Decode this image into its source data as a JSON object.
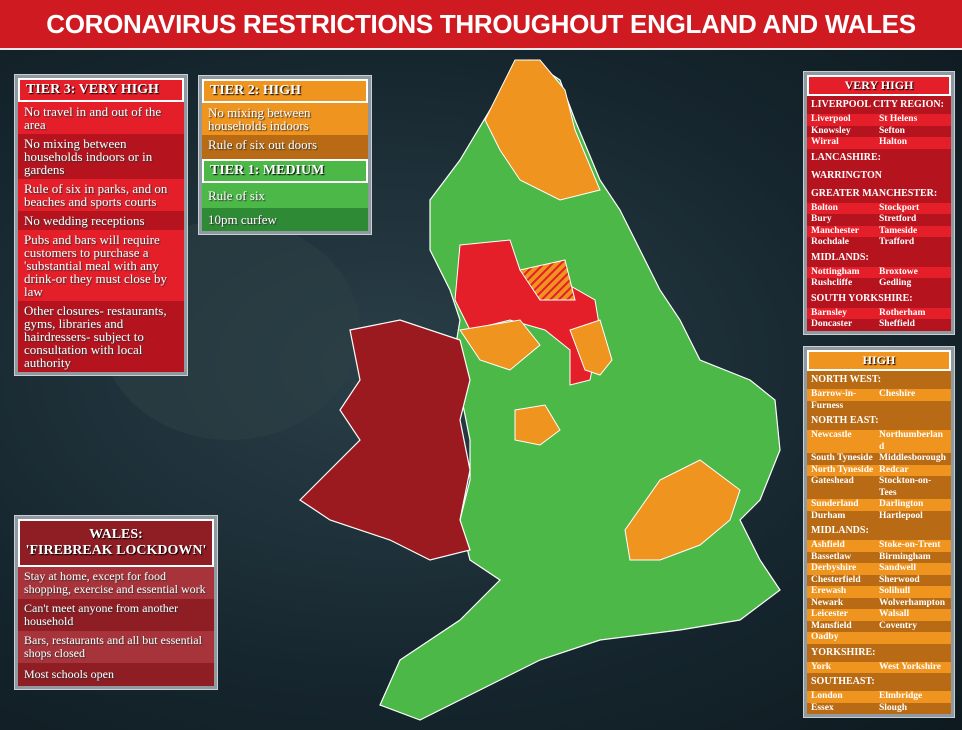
{
  "title": "CORONAVIRUS RESTRICTIONS THROUGHOUT ENGLAND AND WALES",
  "tier3": {
    "header": "TIER 3: VERY HIGH",
    "items": [
      "No travel in and out of the area",
      "No mixing between households indoors or in gardens",
      "Rule of six in parks, and on beaches and sports courts",
      "No wedding receptions",
      "Pubs and bars will require customers to purchase a 'substantial meal with any drink-or they must close by law",
      "Other closures- restaurants, gyms, libraries and hairdressers- subject to consultation with local authority"
    ]
  },
  "tier2": {
    "header": "TIER 2: HIGH",
    "items": [
      "No mixing between households indoors",
      "Rule of six out doors"
    ]
  },
  "tier1": {
    "header": "TIER 1: MEDIUM",
    "items": [
      "Rule of six",
      "10pm curfew"
    ]
  },
  "wales": {
    "header_line1": "WALES:",
    "header_line2": "'FIREBREAK LOCKDOWN'",
    "items": [
      "Stay at home, except for food shopping, exercise and essential work",
      "Can't meet anyone from another household",
      "Bars, restaurants and all but essential shops closed",
      "Most schools open"
    ]
  },
  "very_high": {
    "header": "VERY HIGH",
    "sections": [
      {
        "name": "LIVERPOOL CITY REGION:",
        "pairs": [
          [
            "Liverpool",
            "St Helens"
          ],
          [
            "Knowsley",
            "Sefton"
          ],
          [
            "Wirral",
            "Halton"
          ]
        ]
      },
      {
        "name": "LANCASHIRE:",
        "pairs": []
      },
      {
        "name": "WARRINGTON",
        "pairs": []
      },
      {
        "name": "GREATER MANCHESTER:",
        "pairs": [
          [
            "Bolton",
            "Stockport"
          ],
          [
            "Bury",
            "Stretford"
          ],
          [
            "Manchester",
            "Tameside"
          ],
          [
            "Rochdale",
            "Trafford"
          ]
        ]
      },
      {
        "name": "MIDLANDS:",
        "pairs": [
          [
            "Nottingham",
            "Broxtowe"
          ],
          [
            "Rushcliffe",
            "Gedling"
          ]
        ]
      },
      {
        "name": "SOUTH YORKSHIRE:",
        "pairs": [
          [
            "Barnsley",
            "Rotherham"
          ],
          [
            "Doncaster",
            "Sheffield"
          ]
        ]
      }
    ]
  },
  "high": {
    "header": "HIGH",
    "sections": [
      {
        "name": "NORTH WEST:",
        "pairs": [
          [
            "Barrow-in-",
            "Cheshire"
          ],
          [
            "Furness",
            ""
          ]
        ]
      },
      {
        "name": "NORTH EAST:",
        "pairs": [
          [
            "Newcastle",
            "Northumberland"
          ],
          [
            "South Tyneside",
            "Middlesborough"
          ],
          [
            "North Tyneside",
            "Redcar"
          ],
          [
            "Gateshead",
            "Stockton-on-Tees"
          ],
          [
            "Sunderland",
            "Darlington"
          ],
          [
            "Durham",
            "Hartlepool"
          ]
        ]
      },
      {
        "name": "MIDLANDS:",
        "pairs": [
          [
            "Ashfield",
            "Stoke-on-Trent"
          ],
          [
            "Bassetlaw",
            "Birmingham"
          ],
          [
            "Derbyshire",
            "Sandwell"
          ],
          [
            "Chesterfield",
            "Sherwood"
          ],
          [
            "Erewash",
            "Solihull"
          ],
          [
            "Newark",
            "Wolverhampton"
          ],
          [
            "Leicester",
            "Walsall"
          ],
          [
            "Mansfield",
            "Coventry"
          ],
          [
            "Oadby",
            ""
          ]
        ]
      },
      {
        "name": "YORKSHIRE:",
        "pairs": [
          [
            "York",
            "West Yorkshire"
          ]
        ]
      },
      {
        "name": "SOUTHEAST:",
        "pairs": [
          [
            "London",
            "Elmbridge"
          ],
          [
            "Essex",
            "Slough"
          ]
        ]
      }
    ]
  },
  "colors": {
    "very_high": "#e41f2a",
    "high": "#ef941f",
    "medium": "#4cb848",
    "wales": "#9b1a1f",
    "title_bar": "#cf1a22"
  }
}
